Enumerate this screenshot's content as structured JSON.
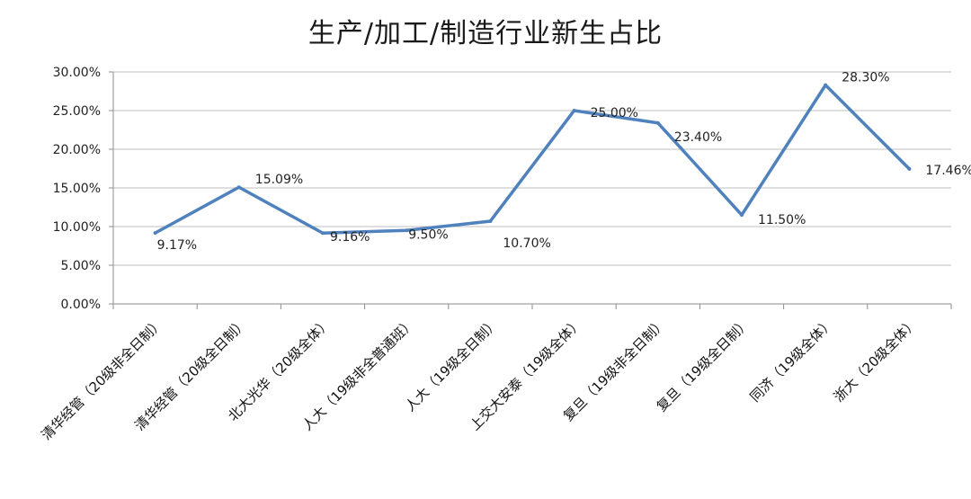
{
  "colors": {
    "line": "#4F81BD",
    "grid": "#bfbfbf",
    "axis": "#8c8c8c"
  },
  "chart_data": {
    "type": "line",
    "title": "生产/加工/制造行业新生占比",
    "categories": [
      "清华经管（20级非全日制）",
      "清华经管（20级全日制）",
      "北大光华（20级全体）",
      "人大（19级非全普通班）",
      "人大（19级全日制）",
      "上交大安泰（19级全体）",
      "复旦（19级非全日制）",
      "复旦（19级全日制）",
      "同济（19级全体）",
      "浙大（20级全体）"
    ],
    "values": [
      9.17,
      15.09,
      9.16,
      9.5,
      10.7,
      25.0,
      23.4,
      11.5,
      28.3,
      17.46
    ],
    "data_labels": [
      "9.17%",
      "15.09%",
      "9.16%",
      "9.50%",
      "10.70%",
      "25.00%",
      "23.40%",
      "11.50%",
      "28.30%",
      "17.46%"
    ],
    "yticks": [
      0,
      5,
      10,
      15,
      20,
      25,
      30
    ],
    "ytick_labels": [
      "0.00%",
      "5.00%",
      "10.00%",
      "15.00%",
      "20.00%",
      "25.00%",
      "30.00%"
    ],
    "ylim": [
      0,
      30
    ],
    "grid": true,
    "legend": "none"
  }
}
